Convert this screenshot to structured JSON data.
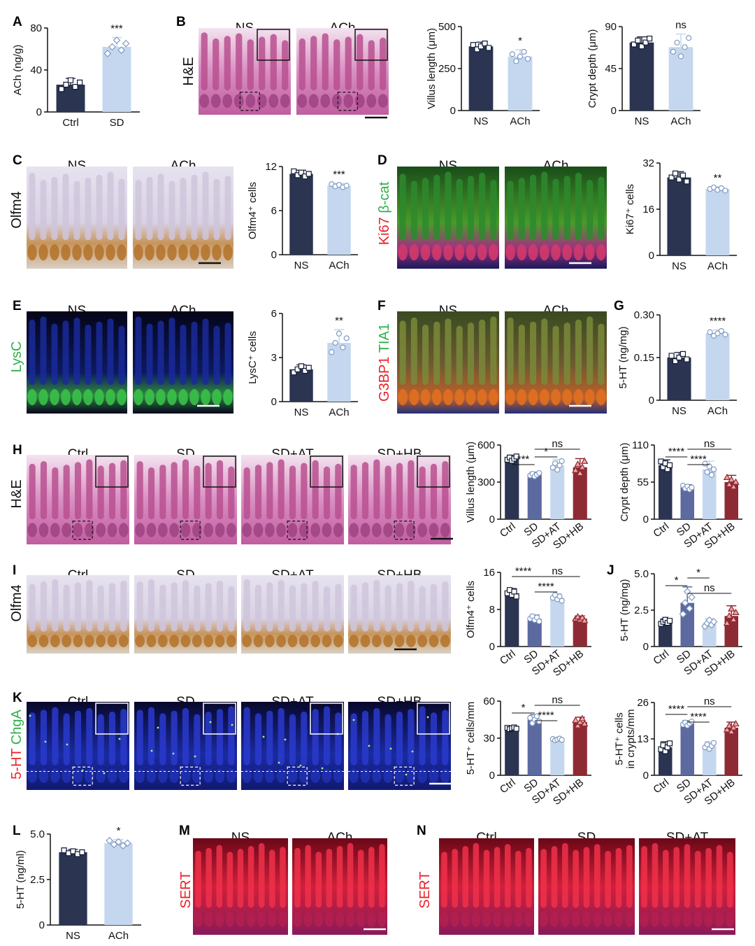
{
  "figure": {
    "panels": [
      {
        "id": "B",
        "label": "B",
        "side_label": "H&E",
        "stain": "he",
        "headers": [
          "NS",
          "ACh"
        ],
        "insets": true
      },
      {
        "id": "C",
        "label": "C",
        "side_label": "Olfm4",
        "stain": "ihc",
        "headers": [
          "NS",
          "ACh"
        ],
        "insets": false
      },
      {
        "id": "D",
        "label": "D",
        "side_label_parts": [
          {
            "text": "Ki67",
            "color": "#e8232a"
          },
          {
            "text": " β-cat",
            "color": "#2fb04a"
          }
        ],
        "stain": "fluor_green",
        "headers": [
          "NS",
          "ACh"
        ],
        "insets": false
      },
      {
        "id": "E",
        "label": "E",
        "side_label_parts": [
          {
            "text": "LysC",
            "color": "#2fb04a"
          }
        ],
        "stain": "fluor_lysc",
        "headers": [
          "NS",
          "ACh"
        ],
        "insets": false
      },
      {
        "id": "F",
        "label": "F",
        "side_label_parts": [
          {
            "text": "G3BP1",
            "color": "#e8232a"
          },
          {
            "text": " TIA1",
            "color": "#2fb04a"
          }
        ],
        "stain": "fluor_orange",
        "headers": [
          "NS",
          "ACh"
        ],
        "insets": false
      },
      {
        "id": "H",
        "label": "H",
        "side_label": "H&E",
        "stain": "he",
        "headers": [
          "Ctrl",
          "SD",
          "SD+AT",
          "SD+HB"
        ],
        "insets": true
      },
      {
        "id": "I",
        "label": "I",
        "side_label": "Olfm4",
        "stain": "ihc",
        "headers": [
          "Ctrl",
          "SD",
          "SD+AT",
          "SD+HB"
        ],
        "insets": false
      },
      {
        "id": "K",
        "label": "K",
        "side_label_parts": [
          {
            "text": "5-HT",
            "color": "#e8232a"
          },
          {
            "text": " ChgA",
            "color": "#2fb04a"
          }
        ],
        "stain": "fluor_blue",
        "headers": [
          "Ctrl",
          "SD",
          "SD+AT",
          "SD+HB"
        ],
        "insets": true
      },
      {
        "id": "M",
        "label": "M",
        "side_label_parts": [
          {
            "text": "SERT",
            "color": "#e8232a"
          }
        ],
        "stain": "sert",
        "headers": [
          "NS",
          "ACh"
        ],
        "insets": false
      },
      {
        "id": "N",
        "label": "N",
        "side_label_parts": [
          {
            "text": "SERT",
            "color": "#e8232a"
          }
        ],
        "stain": "sert",
        "headers": [
          "Ctrl",
          "SD",
          "SD+AT"
        ],
        "insets": false
      }
    ],
    "colors": {
      "ctrl": "#2b3552",
      "treated": "#c4d7ee",
      "sd_hb": "#8e2a34",
      "marker_ctrl": "#ffffff",
      "marker_treated": "#ffffff",
      "marker_hb": "#f0a5a5"
    }
  },
  "chart_data": [
    {
      "id": "A",
      "label": "A",
      "type": "bar",
      "categories": [
        "Ctrl",
        "SD"
      ],
      "values": [
        26,
        62
      ],
      "errors": [
        6,
        9
      ],
      "ylabel": "ACh (ng/g)",
      "ylim": [
        0,
        80
      ],
      "yticks": [
        "0",
        "40",
        "80"
      ],
      "markers": [
        "square",
        "diamond"
      ],
      "sig": [
        {
          "text": "***",
          "bar": 1
        }
      ]
    },
    {
      "id": "B1",
      "type": "bar",
      "categories": [
        "NS",
        "ACh"
      ],
      "values": [
        382,
        322
      ],
      "errors": [
        25,
        40
      ],
      "ylabel": "Villus length (μm)",
      "ylim": [
        0,
        500
      ],
      "yticks": [
        "0",
        "250",
        "500"
      ],
      "markers": [
        "square",
        "circle"
      ],
      "sig": [
        {
          "text": "*",
          "bar": 1
        }
      ]
    },
    {
      "id": "B2",
      "type": "bar",
      "categories": [
        "NS",
        "ACh"
      ],
      "values": [
        73,
        68
      ],
      "errors": [
        6,
        14
      ],
      "ylabel": "Crypt depth (μm)",
      "ylim": [
        0,
        90
      ],
      "yticks": [
        "0",
        "45",
        "90"
      ],
      "markers": [
        "square",
        "circle"
      ],
      "sig": [
        {
          "text": "ns",
          "bar": 1
        }
      ]
    },
    {
      "id": "C",
      "type": "bar",
      "categories": [
        "NS",
        "ACh"
      ],
      "values": [
        11,
        9.4
      ],
      "errors": [
        0.5,
        0.3
      ],
      "ylabel": "Olfm4⁺ cells",
      "ylim": [
        0,
        12
      ],
      "yticks": [
        "0",
        "6",
        "12"
      ],
      "markers": [
        "square",
        "circle"
      ],
      "sig": [
        {
          "text": "***",
          "bar": 1
        }
      ]
    },
    {
      "id": "D",
      "type": "bar",
      "categories": [
        "NS",
        "ACh"
      ],
      "values": [
        27,
        23
      ],
      "errors": [
        2,
        0.8
      ],
      "ylabel": "Ki67⁺ cells",
      "ylim": [
        0,
        32
      ],
      "yticks": [
        "0",
        "16",
        "32"
      ],
      "markers": [
        "square",
        "circle"
      ],
      "sig": [
        {
          "text": "**",
          "bar": 1
        }
      ]
    },
    {
      "id": "E",
      "type": "bar",
      "categories": [
        "NS",
        "ACh"
      ],
      "values": [
        2.2,
        4.0
      ],
      "errors": [
        0.3,
        0.9
      ],
      "ylabel": "LysC⁺ cells",
      "ylim": [
        0,
        6
      ],
      "yticks": [
        "0",
        "3",
        "6"
      ],
      "markers": [
        "square",
        "circle"
      ],
      "sig": [
        {
          "text": "**",
          "bar": 1
        }
      ]
    },
    {
      "id": "G",
      "label": "G",
      "type": "bar",
      "categories": [
        "NS",
        "ACh"
      ],
      "values": [
        0.15,
        0.235
      ],
      "errors": [
        0.018,
        0.012
      ],
      "ylabel": "5-HT (ng/mg)",
      "ylim": [
        0,
        0.3
      ],
      "yticks": [
        "0",
        "0.15",
        "0.30"
      ],
      "markers": [
        "square",
        "circle"
      ],
      "sig": [
        {
          "text": "****",
          "bar": 1
        }
      ]
    },
    {
      "id": "H1",
      "type": "bar",
      "categories": [
        "Ctrl",
        "SD",
        "SD+AT",
        "SD+HB"
      ],
      "values": [
        490,
        360,
        435,
        420
      ],
      "errors": [
        25,
        20,
        50,
        70
      ],
      "ylabel": "Villus length (μm)",
      "ylim": [
        0,
        600
      ],
      "yticks": [
        "0",
        "300",
        "600"
      ],
      "markers": [
        "square",
        "circle",
        "circle",
        "triangle"
      ],
      "sig": [
        {
          "text": "***",
          "from": 0,
          "to": 1,
          "level": 0
        },
        {
          "text": "*",
          "from": 1,
          "to": 2,
          "level": 1
        },
        {
          "text": "ns",
          "from": 1,
          "to": 3,
          "level": 2
        }
      ]
    },
    {
      "id": "H2",
      "type": "bar",
      "categories": [
        "Ctrl",
        "SD",
        "SD+AT",
        "SD+HB"
      ],
      "values": [
        80,
        47,
        74,
        55
      ],
      "errors": [
        8,
        4,
        12,
        10
      ],
      "ylabel": "Crypt depth (μm)",
      "ylim": [
        0,
        110
      ],
      "yticks": [
        "0",
        "55",
        "110"
      ],
      "markers": [
        "square",
        "circle",
        "circle",
        "triangle"
      ],
      "sig": [
        {
          "text": "****",
          "from": 0,
          "to": 1,
          "level": 1
        },
        {
          "text": "****",
          "from": 1,
          "to": 2,
          "level": 0
        },
        {
          "text": "ns",
          "from": 1,
          "to": 3,
          "level": 2
        }
      ]
    },
    {
      "id": "I",
      "type": "bar",
      "categories": [
        "Ctrl",
        "SD",
        "SD+AT",
        "SD+HB"
      ],
      "values": [
        11.5,
        6,
        10.5,
        6
      ],
      "errors": [
        1,
        0.8,
        0.9,
        0.6
      ],
      "ylabel": "Olfm4⁺ cells",
      "ylim": [
        0,
        16
      ],
      "yticks": [
        "0",
        "8",
        "16"
      ],
      "markers": [
        "square",
        "circle",
        "circle",
        "triangle"
      ],
      "sig": [
        {
          "text": "****",
          "from": 0,
          "to": 1,
          "level": 2
        },
        {
          "text": "****",
          "from": 1,
          "to": 2,
          "level": 0
        },
        {
          "text": "ns",
          "from": 1,
          "to": 3,
          "level": 2
        }
      ]
    },
    {
      "id": "J",
      "label": "J",
      "type": "bar",
      "categories": [
        "Ctrl",
        "SD",
        "SD+AT",
        "SD+HB"
      ],
      "values": [
        1.7,
        3.0,
        1.6,
        2.1
      ],
      "errors": [
        0.2,
        1.1,
        0.3,
        0.7
      ],
      "ylabel": "5-HT (ng/mg)",
      "ylim": [
        0,
        5.0
      ],
      "yticks": [
        "0",
        "2.5",
        "5.0"
      ],
      "markers": [
        "square",
        "diamond",
        "diamond",
        "triangle"
      ],
      "sig": [
        {
          "text": "*",
          "from": 0,
          "to": 1,
          "level": 1
        },
        {
          "text": "*",
          "from": 1,
          "to": 2,
          "level": 2
        },
        {
          "text": "ns",
          "from": 1,
          "to": 3,
          "level": 0
        }
      ]
    },
    {
      "id": "K1",
      "type": "bar",
      "categories": [
        "Ctrl",
        "SD",
        "SD+AT",
        "SD+HB"
      ],
      "values": [
        38,
        45,
        29,
        43
      ],
      "errors": [
        1,
        4,
        1,
        4
      ],
      "ylabel": "5-HT⁺ cells/mm",
      "ylim": [
        0,
        60
      ],
      "yticks": [
        "0",
        "30",
        "60"
      ],
      "markers": [
        "square",
        "circle",
        "circle",
        "triangle"
      ],
      "sig": [
        {
          "text": "*",
          "from": 0,
          "to": 1,
          "level": 1
        },
        {
          "text": "****",
          "from": 1,
          "to": 2,
          "level": 0
        },
        {
          "text": "ns",
          "from": 1,
          "to": 3,
          "level": 2
        }
      ]
    },
    {
      "id": "K2",
      "type": "bar",
      "categories": [
        "Ctrl",
        "SD",
        "SD+AT",
        "SD+HB"
      ],
      "values": [
        10,
        18.5,
        10.5,
        17
      ],
      "errors": [
        2,
        1,
        1.5,
        2
      ],
      "ylabel": "5-HT⁺ cells\nin crypts/mm",
      "ylim": [
        0,
        26
      ],
      "yticks": [
        "0",
        "13",
        "26"
      ],
      "markers": [
        "square",
        "circle",
        "circle",
        "triangle"
      ],
      "sig": [
        {
          "text": "****",
          "from": 0,
          "to": 1,
          "level": 1
        },
        {
          "text": "****",
          "from": 1,
          "to": 2,
          "level": 0
        },
        {
          "text": "ns",
          "from": 1,
          "to": 3,
          "level": 2
        }
      ]
    },
    {
      "id": "L",
      "label": "L",
      "type": "bar",
      "categories": [
        "NS",
        "ACh"
      ],
      "values": [
        4.0,
        4.5
      ],
      "errors": [
        0.15,
        0.2
      ],
      "ylabel": "5-HT (ng/ml)",
      "ylim": [
        0,
        5.0
      ],
      "yticks": [
        "0",
        "2.5",
        "5.0"
      ],
      "markers": [
        "square",
        "diamond"
      ],
      "sig": [
        {
          "text": "*",
          "bar": 1
        }
      ]
    }
  ]
}
